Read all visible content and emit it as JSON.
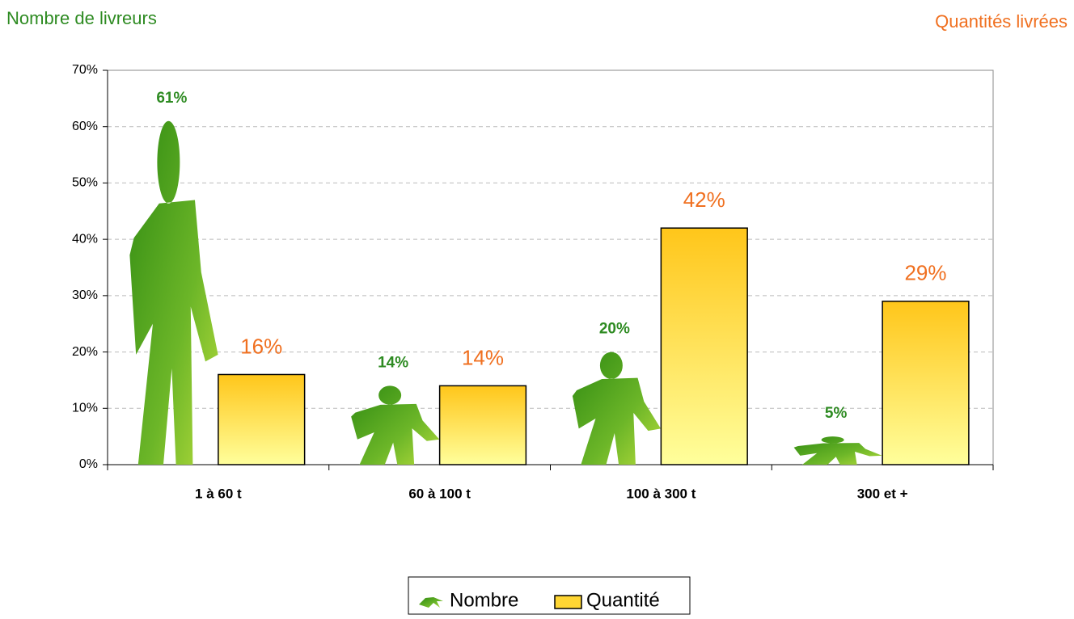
{
  "chart_data": {
    "type": "bar",
    "y_label": "Nombre de livreurs",
    "y2_label": "Quantités livrées",
    "categories": [
      "1 à 60 t",
      "60 à 100 t",
      "100 à 300 t",
      "300 et +"
    ],
    "series": [
      {
        "name": "Nombre",
        "color": "#3c9a1c",
        "label_color": "#2e8b22",
        "values": [
          61,
          14,
          20,
          5
        ],
        "value_labels": [
          "61%",
          "14%",
          "20%",
          "5%"
        ]
      },
      {
        "name": "Quantité",
        "color": "#ffd633",
        "label_color": "#f07020",
        "values": [
          16,
          14,
          42,
          29
        ],
        "value_labels": [
          "16%",
          "14%",
          "42%",
          "29%"
        ]
      }
    ],
    "ylim": [
      0,
      70
    ],
    "yticks": [
      {
        "value": 0,
        "label": "0%"
      },
      {
        "value": 10,
        "label": "10%"
      },
      {
        "value": 20,
        "label": "20%"
      },
      {
        "value": 30,
        "label": "30%"
      },
      {
        "value": 40,
        "label": "40%"
      },
      {
        "value": 50,
        "label": "50%"
      },
      {
        "value": 60,
        "label": "60%"
      },
      {
        "value": 70,
        "label": "70%"
      }
    ],
    "grid": true,
    "legend": "bottom"
  }
}
